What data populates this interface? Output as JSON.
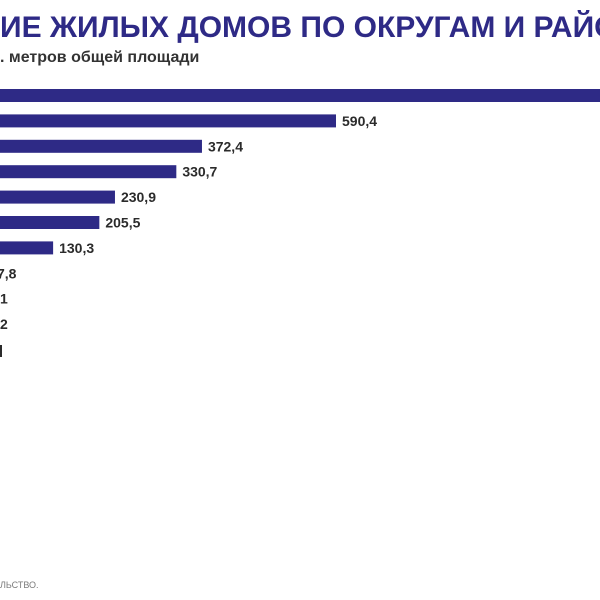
{
  "header": {
    "title": "ИЕ ЖИЛЫХ ДОМОВ ПО ОКРУГАМ И РАЙОНА",
    "subtitle": ". метров общей площади"
  },
  "footer": {
    "source": "ЛЬСТВО."
  },
  "colors": {
    "bar": "#2e2a86",
    "title": "#2e2a86"
  },
  "chart_data": {
    "type": "bar",
    "orientation": "horizontal",
    "title": "",
    "xlabel": "",
    "ylabel": "",
    "categories": [],
    "bars": [
      {
        "value": null,
        "label": ""
      },
      {
        "value": 590.4,
        "label": "590,4"
      },
      {
        "value": 372.4,
        "label": "372,4"
      },
      {
        "value": 330.7,
        "label": "330,7"
      },
      {
        "value": 230.9,
        "label": "230,9"
      },
      {
        "value": 205.5,
        "label": "205,5"
      },
      {
        "value": 130.3,
        "label": "130,3"
      },
      {
        "value": null,
        "label": "7,8"
      },
      {
        "value": null,
        "label": "1"
      },
      {
        "value": null,
        "label": "2"
      }
    ],
    "grid": false,
    "legend": "none"
  }
}
